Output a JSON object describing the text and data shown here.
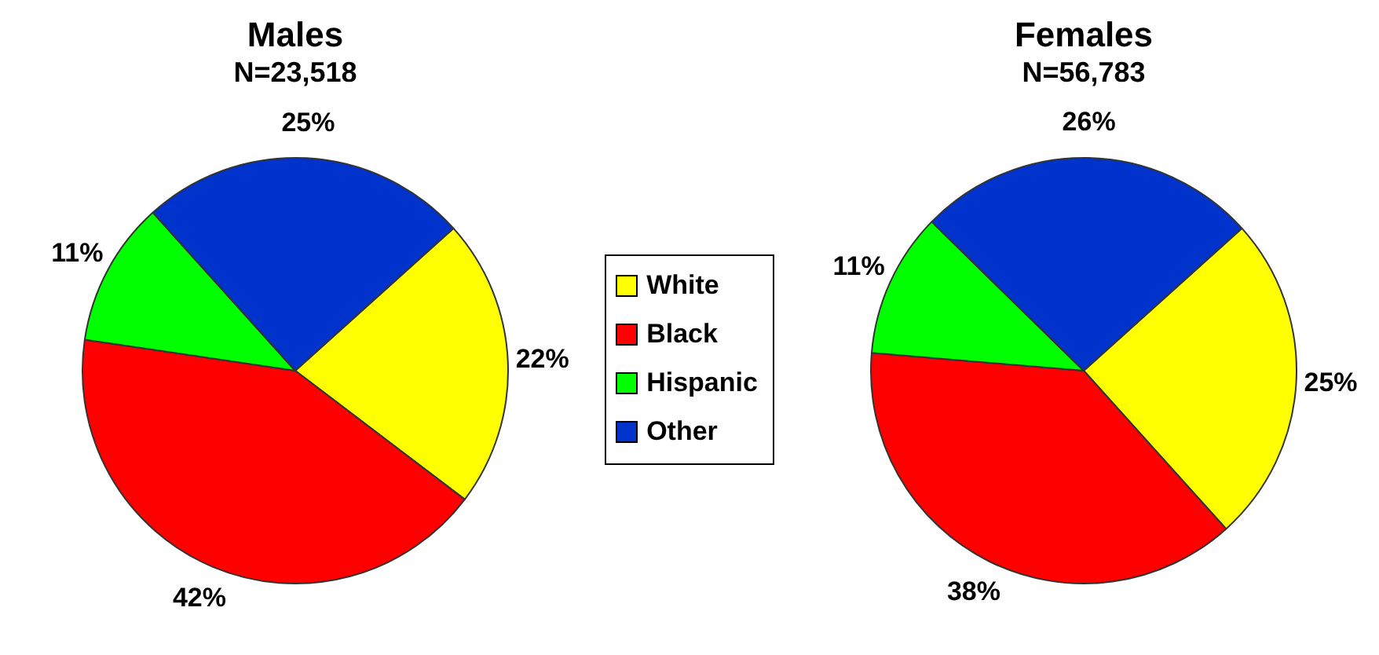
{
  "chart_data": [
    {
      "type": "pie",
      "title": "Males",
      "subtitle": "N=23,518",
      "categories": [
        "White",
        "Black",
        "Hispanic",
        "Other"
      ],
      "values": [
        22,
        42,
        11,
        25
      ],
      "colors": [
        "#ffff00",
        "#ff0000",
        "#00ff00",
        "#0033cc"
      ],
      "value_labels": [
        "22%",
        "42%",
        "11%",
        "25%"
      ],
      "legend": "right"
    },
    {
      "type": "pie",
      "title": "Females",
      "subtitle": "N=56,783",
      "categories": [
        null,
        null,
        null,
        null
      ],
      "values": [
        25,
        38,
        11,
        26
      ],
      "colors": [
        "#ffff00",
        "#ff0000",
        "#00ff00",
        "#0033cc"
      ],
      "value_labels": [
        "25%",
        "38%",
        "11%",
        "26%"
      ],
      "legend": false
    }
  ]
}
